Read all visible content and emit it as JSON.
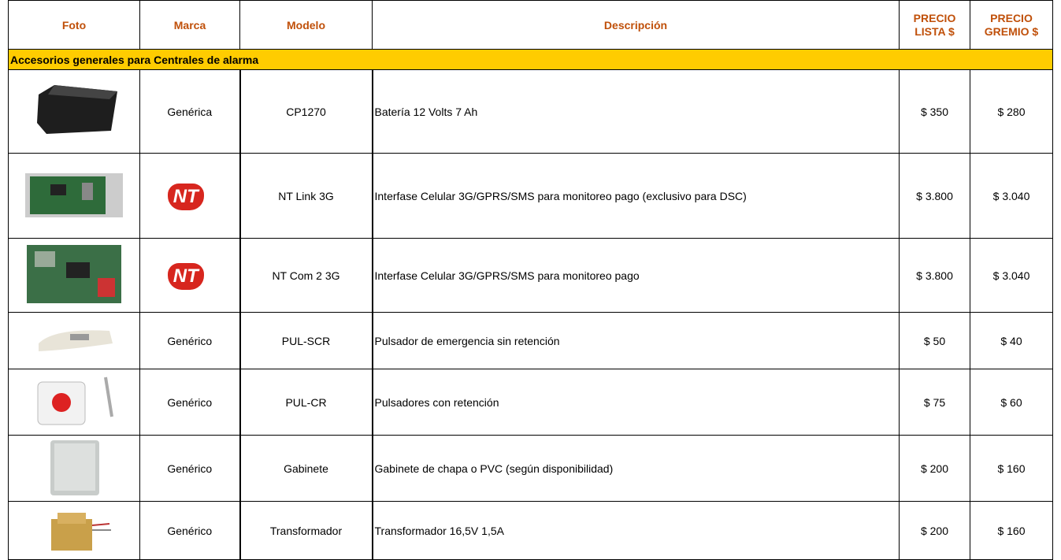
{
  "table": {
    "header": [
      "Foto",
      "Marca",
      "Modelo",
      "Descripción",
      "PRECIO LISTA $",
      "PRECIO GREMIO $"
    ],
    "section": "Accesorios generales para Centrales de alarma",
    "rows": [
      {
        "brand": "Genérica",
        "model": "CP1270",
        "description": "Batería 12 Volts 7 Ah",
        "list": "$ 350",
        "trade": "$ 280"
      },
      {
        "brand": "NT",
        "model": "NT Link 3G",
        "description": "Interfase Celular 3G/GPRS/SMS para monitoreo pago (exclusivo para DSC)",
        "list": "$ 3.800",
        "trade": "$ 3.040"
      },
      {
        "brand": "NT",
        "model": "NT Com 2 3G",
        "description": "Interfase Celular 3G/GPRS/SMS para monitoreo pago",
        "list": "$ 3.800",
        "trade": "$ 3.040"
      },
      {
        "brand": "Genérico",
        "model": "PUL-SCR",
        "description": "Pulsador de emergencia sin retención",
        "list": "$ 50",
        "trade": "$ 40"
      },
      {
        "brand": "Genérico",
        "model": "PUL-CR",
        "description": "Pulsadores con retención",
        "list": "$ 75",
        "trade": "$ 60"
      },
      {
        "brand": "Genérico",
        "model": "Gabinete",
        "description": "Gabinete de chapa o PVC (según disponibilidad)",
        "list": "$ 200",
        "trade": "$ 160"
      },
      {
        "brand": "Genérico",
        "model": "Transformador",
        "description": "Transformador 16,5V 1,5A",
        "list": "$ 200",
        "trade": "$ 160"
      }
    ]
  }
}
